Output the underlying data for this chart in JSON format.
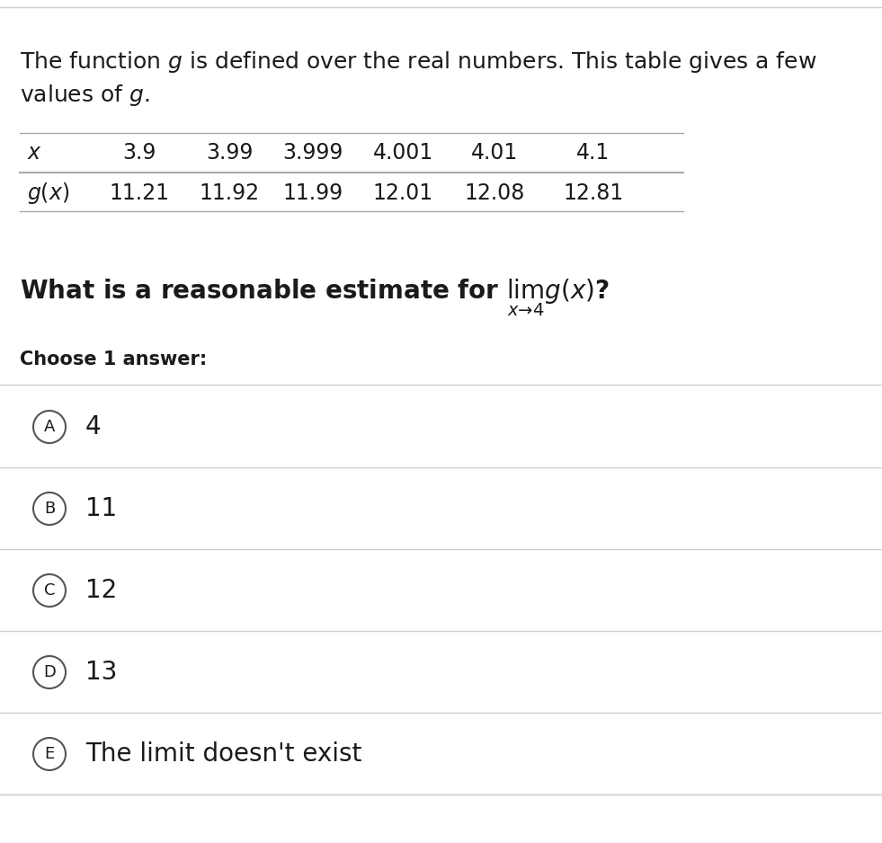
{
  "table_x_values": [
    "3.9",
    "3.99",
    "3.999",
    "4.001",
    "4.01",
    "4.1"
  ],
  "table_gx_values": [
    "11.21",
    "11.92",
    "11.99",
    "12.01",
    "12.08",
    "12.81"
  ],
  "choices": [
    "4",
    "11",
    "12",
    "13",
    "The limit doesn't exist"
  ],
  "choice_labels": [
    "A",
    "B",
    "C",
    "D",
    "E"
  ],
  "bg_color": "#ffffff",
  "text_color": "#1a1a1a",
  "line_color": "#d0d0d0",
  "table_line_color": "#aaaaaa",
  "top_border_color": "#cccccc"
}
